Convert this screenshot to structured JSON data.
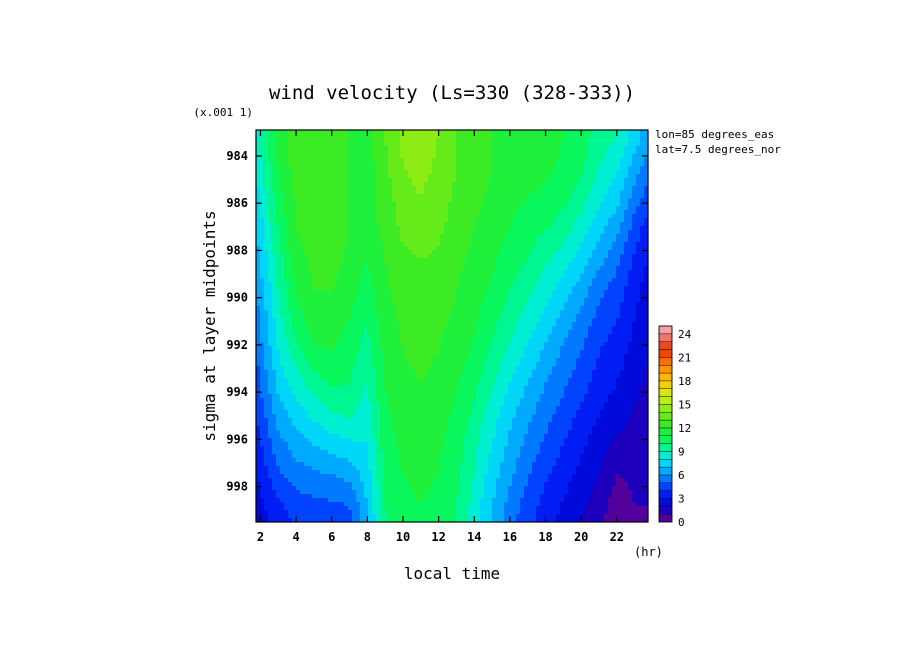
{
  "chart_data": {
    "type": "heatmap",
    "title": "wind velocity (Ls=330 (328-333))",
    "xlabel": "local time",
    "ylabel": "sigma at layer midpoints",
    "x_unit": "(hr)",
    "y_scale_note": "(x.001 1)",
    "annotations": [
      "lon=85 degrees_eas",
      "lat=7.5 degrees_nor"
    ],
    "x_ticks": [
      2,
      4,
      6,
      8,
      10,
      12,
      14,
      16,
      18,
      20,
      22
    ],
    "y_ticks": [
      984,
      986,
      988,
      990,
      992,
      994,
      996,
      998
    ],
    "xlim": [
      1.75,
      23.75
    ],
    "ylim": [
      982.9,
      999.5
    ],
    "colorbar": {
      "ticks": [
        0,
        3,
        6,
        9,
        12,
        15,
        18,
        21,
        24
      ],
      "range": [
        0,
        25
      ],
      "step": 1
    },
    "x": [
      1.75,
      3,
      4,
      5,
      6,
      7,
      8,
      9,
      10,
      11,
      12,
      13,
      14,
      15,
      16,
      17,
      18,
      19,
      20,
      21,
      22,
      23,
      23.75
    ],
    "y": [
      983.2,
      984.5,
      985.8,
      987.1,
      988.4,
      989.7,
      991.0,
      992.3,
      993.6,
      994.9,
      996.2,
      997.5,
      998.8,
      999.5
    ],
    "values_note": "wind velocity (x.001 1) estimated from color; rows follow y, columns follow x",
    "values": [
      [
        8.5,
        11.5,
        12.5,
        12.5,
        12.8,
        12.0,
        11.5,
        13.0,
        14.2,
        14.5,
        14.0,
        13.0,
        12.5,
        12.0,
        11.5,
        11.5,
        11.5,
        11.0,
        10.5,
        9.5,
        9.0,
        7.5,
        6.5
      ],
      [
        8.0,
        11.0,
        12.5,
        12.8,
        13.0,
        12.0,
        11.5,
        12.8,
        14.0,
        14.3,
        13.8,
        13.0,
        12.5,
        12.0,
        11.5,
        11.3,
        11.2,
        10.8,
        10.2,
        9.0,
        8.2,
        6.5,
        5.5
      ],
      [
        7.5,
        10.5,
        12.2,
        12.8,
        12.8,
        12.0,
        11.5,
        12.5,
        13.6,
        14.0,
        13.5,
        12.8,
        12.3,
        11.8,
        11.3,
        11.0,
        10.8,
        10.3,
        9.5,
        8.3,
        7.3,
        5.5,
        4.5
      ],
      [
        7.0,
        10.0,
        12.0,
        12.5,
        12.5,
        12.0,
        11.5,
        12.3,
        13.2,
        13.5,
        13.2,
        12.5,
        12.0,
        11.5,
        11.0,
        10.5,
        10.0,
        9.5,
        8.5,
        7.3,
        6.3,
        4.5,
        3.5
      ],
      [
        6.5,
        9.5,
        11.5,
        12.3,
        12.3,
        11.8,
        11.0,
        12.0,
        12.8,
        13.0,
        12.8,
        12.2,
        11.8,
        11.2,
        10.5,
        10.0,
        9.2,
        8.5,
        7.5,
        6.3,
        5.3,
        3.8,
        3.0
      ],
      [
        6.0,
        9.0,
        11.0,
        12.0,
        12.0,
        11.5,
        10.5,
        11.8,
        12.5,
        12.8,
        12.5,
        12.0,
        11.5,
        10.8,
        10.0,
        9.3,
        8.5,
        7.5,
        6.5,
        5.3,
        4.5,
        3.3,
        2.5
      ],
      [
        5.5,
        8.5,
        10.5,
        11.5,
        11.5,
        11.0,
        10.0,
        11.5,
        12.2,
        12.5,
        12.2,
        11.8,
        11.2,
        10.3,
        9.5,
        8.5,
        7.6,
        6.6,
        5.6,
        4.6,
        4.0,
        3.0,
        2.2
      ],
      [
        5.0,
        8.0,
        9.5,
        10.8,
        11.0,
        10.5,
        9.5,
        11.3,
        12.0,
        12.2,
        12.0,
        11.5,
        10.8,
        9.8,
        8.8,
        7.8,
        6.8,
        5.8,
        5.0,
        4.0,
        3.5,
        2.6,
        2.0
      ],
      [
        4.5,
        7.3,
        8.5,
        9.5,
        10.2,
        10.0,
        9.0,
        11.0,
        11.8,
        12.0,
        11.8,
        11.2,
        10.3,
        9.2,
        8.0,
        7.0,
        6.0,
        5.2,
        4.4,
        3.6,
        3.0,
        2.3,
        1.8
      ],
      [
        4.0,
        6.5,
        7.5,
        8.3,
        9.0,
        9.2,
        8.5,
        10.8,
        11.5,
        11.8,
        11.5,
        10.8,
        9.8,
        8.5,
        7.3,
        6.3,
        5.4,
        4.6,
        3.8,
        3.0,
        2.5,
        1.9,
        1.5
      ],
      [
        3.5,
        5.6,
        6.5,
        7.0,
        7.5,
        7.8,
        8.0,
        10.5,
        11.3,
        11.5,
        11.2,
        10.5,
        9.3,
        8.0,
        6.8,
        5.7,
        4.8,
        4.0,
        3.2,
        2.5,
        1.8,
        1.5,
        1.3
      ],
      [
        3.0,
        4.8,
        5.5,
        5.8,
        6.0,
        6.3,
        7.5,
        10.2,
        11.0,
        11.2,
        11.0,
        10.3,
        9.0,
        7.5,
        6.2,
        5.1,
        4.2,
        3.4,
        2.7,
        2.0,
        1.0,
        1.2,
        1.2
      ],
      [
        2.5,
        3.8,
        4.5,
        4.7,
        4.8,
        5.0,
        7.0,
        10.0,
        10.8,
        11.0,
        10.8,
        10.0,
        8.6,
        7.0,
        5.6,
        4.5,
        3.6,
        2.9,
        2.2,
        1.5,
        0.5,
        1.0,
        1.0
      ],
      [
        2.3,
        3.5,
        4.2,
        4.4,
        4.5,
        4.7,
        6.8,
        9.8,
        10.6,
        10.9,
        10.7,
        9.9,
        8.5,
        6.8,
        5.4,
        4.3,
        3.4,
        2.7,
        2.0,
        1.3,
        0.3,
        0.9,
        0.9
      ]
    ]
  }
}
